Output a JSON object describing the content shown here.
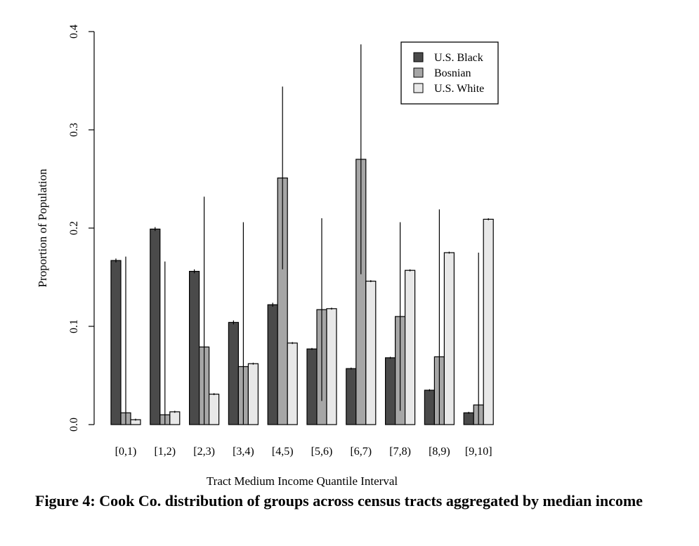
{
  "chart_data": {
    "type": "bar",
    "xlabel": "Tract Medium Income Quantile Interval",
    "ylabel": "Proportion of Population",
    "ylim": [
      0,
      0.4
    ],
    "yticks": [
      "0.0",
      "0.1",
      "0.2",
      "0.3",
      "0.4"
    ],
    "categories": [
      "[0,1)",
      "[1,2)",
      "[2,3)",
      "[3,4)",
      "[4,5)",
      "[5,6)",
      "[6,7)",
      "[7,8)",
      "[8,9)",
      "[9,10]"
    ],
    "series": [
      {
        "name": "U.S. Black",
        "color": "#4a4a4a",
        "values": [
          0.167,
          0.199,
          0.156,
          0.104,
          0.122,
          0.077,
          0.057,
          0.068,
          0.035,
          0.012
        ],
        "error": [
          0.002,
          0.002,
          0.002,
          0.002,
          0.002,
          0.001,
          0.001,
          0.001,
          0.001,
          0.001
        ]
      },
      {
        "name": "Bosnian",
        "color": "#a6a6a6",
        "values": [
          0.012,
          0.01,
          0.079,
          0.059,
          0.251,
          0.117,
          0.27,
          0.11,
          0.069,
          0.02
        ],
        "error": [
          0.159,
          0.156,
          0.153,
          0.147,
          0.093,
          0.093,
          0.117,
          0.096,
          0.15,
          0.155
        ]
      },
      {
        "name": "U.S. White",
        "color": "#e8e8e8",
        "values": [
          0.005,
          0.013,
          0.031,
          0.062,
          0.083,
          0.118,
          0.146,
          0.157,
          0.175,
          0.209
        ],
        "error": [
          0.001,
          0.001,
          0.001,
          0.001,
          0.001,
          0.001,
          0.001,
          0.001,
          0.001,
          0.001
        ]
      }
    ],
    "legend_position": "top-right",
    "grid": false
  },
  "caption": "Figure 4: Cook Co. distribution of groups across census tracts aggregated by median income"
}
